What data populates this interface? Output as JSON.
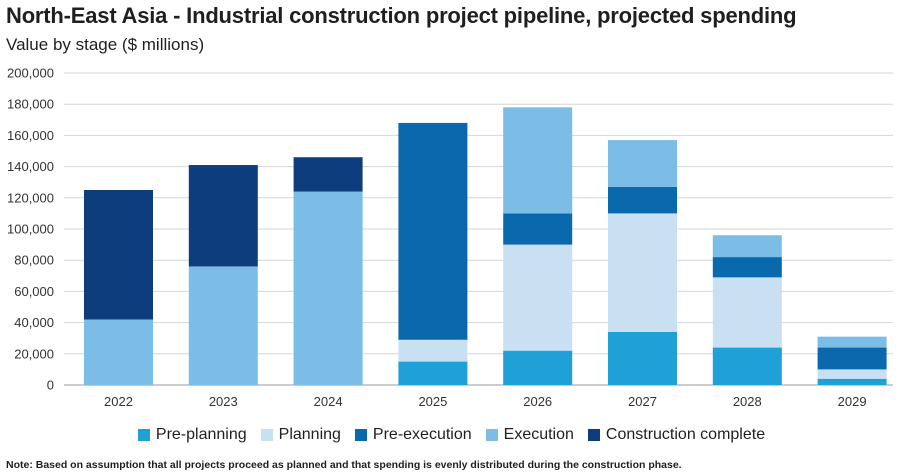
{
  "title": "North-East Asia - Industrial construction project pipeline, projected spending",
  "subtitle": "Value by stage ($ millions)",
  "note": "Note: Based on assumption that all projects proceed as planned and that spending is evenly distributed during the construction phase.",
  "chart_data": {
    "type": "bar",
    "stacked": true,
    "title": "North-East Asia - Industrial construction project pipeline, projected spending",
    "ylabel": "Value by stage ($ millions)",
    "xlabel": "",
    "ylim": [
      0,
      200000
    ],
    "yticks": [
      0,
      20000,
      40000,
      60000,
      80000,
      100000,
      120000,
      140000,
      160000,
      180000,
      200000
    ],
    "ytick_labels": [
      "0",
      "20,000",
      "40,000",
      "60,000",
      "80,000",
      "100,000",
      "120,000",
      "140,000",
      "160,000",
      "180,000",
      "200,000"
    ],
    "grid": true,
    "legend_position": "bottom",
    "categories": [
      "2022",
      "2023",
      "2024",
      "2025",
      "2026",
      "2027",
      "2028",
      "2029"
    ],
    "series": [
      {
        "name": "Pre-planning",
        "color": "#1fa0d6",
        "values": [
          0,
          0,
          0,
          15000,
          22000,
          34000,
          24000,
          4000
        ]
      },
      {
        "name": "Planning",
        "color": "#c8e0f2",
        "values": [
          0,
          0,
          0,
          14000,
          68000,
          76000,
          45000,
          6000
        ]
      },
      {
        "name": "Pre-execution",
        "color": "#0a68ad",
        "values": [
          0,
          0,
          0,
          139000,
          20000,
          17000,
          13000,
          14000
        ]
      },
      {
        "name": "Execution",
        "color": "#7bbde6",
        "values": [
          42000,
          76000,
          124000,
          0,
          68000,
          30000,
          14000,
          7000
        ]
      },
      {
        "name": "Construction complete",
        "color": "#0d3d7c",
        "values": [
          83000,
          65000,
          22000,
          0,
          0,
          0,
          0,
          0
        ]
      }
    ]
  }
}
